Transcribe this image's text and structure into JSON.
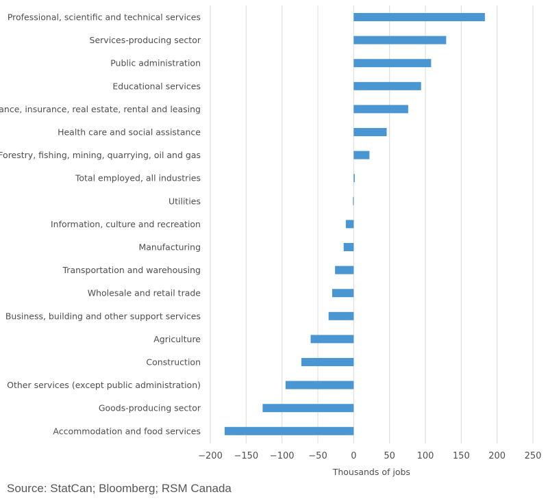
{
  "chart_data": {
    "type": "bar",
    "orientation": "horizontal",
    "categories": [
      "Professional, scientific and technical services",
      "Services-producing sector",
      "Public administration",
      "Educational services",
      "Finance, insurance, real estate, rental and leasing",
      "Health care and social assistance",
      "Forestry, fishing, mining, quarrying, oil and gas",
      "Total employed, all industries",
      "Utilities",
      "Information, culture and recreation",
      "Manufacturing",
      "Transportation and warehousing",
      "Wholesale and retail trade",
      "Business, building and other support services",
      "Agriculture",
      "Construction",
      "Other services (except public administration)",
      "Goods-producing sector",
      "Accommodation and food services"
    ],
    "values": [
      183,
      129,
      108,
      94,
      76,
      46,
      22,
      1.5,
      -1,
      -11,
      -14,
      -26,
      -30,
      -35,
      -60,
      -73,
      -95,
      -127,
      -180
    ],
    "xlabel": "Thousands of jobs",
    "xlim": [
      -200,
      250
    ],
    "xticks": [
      "−200",
      "−150",
      "−100",
      "−50",
      "0",
      "50",
      "100",
      "150",
      "200",
      "250"
    ],
    "xtick_values": [
      -200,
      -150,
      -100,
      -50,
      0,
      50,
      100,
      150,
      200,
      250
    ],
    "grid": true,
    "bar_color": "#4a96d2",
    "grid_color": "#d9d9d9",
    "source": "Source: StatCan; Bloomberg; RSM Canada"
  }
}
